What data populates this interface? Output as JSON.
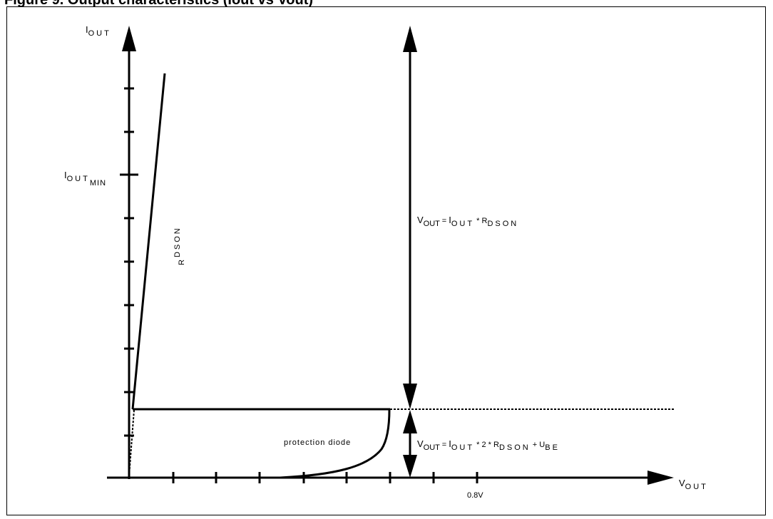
{
  "figure": {
    "title": "Figure 9. Output characteristics (Iout vs Vout)"
  },
  "axes": {
    "y_label": {
      "main": "I",
      "sub": "OUT"
    },
    "x_label": {
      "main": "V",
      "sub": "OUT"
    },
    "y_tick_label": {
      "main": "I",
      "sub": "OUT",
      "subsub": "MIN"
    },
    "x_tick_label": "0.8V"
  },
  "annotations": {
    "rdson_label": {
      "main": "R",
      "sub": "DSON"
    },
    "protection_diode": "protection diode",
    "eq_upper": {
      "v": "V",
      "v_sub": "OUT",
      "eq": " = ",
      "i": "I",
      "i_sub": "OUT",
      "op1": " * ",
      "r": "R",
      "r_sub": "DSON"
    },
    "eq_lower": {
      "v": "V",
      "v_sub": "OUT",
      "eq": " = ",
      "i": "I",
      "i_sub": "OUT",
      "op1": " * 2 * ",
      "r": "R",
      "r_sub": "DSON",
      "op2": " + ",
      "u": "U",
      "u_sub": "BE"
    }
  },
  "colors": {
    "stroke": "#000000",
    "background": "#ffffff"
  }
}
